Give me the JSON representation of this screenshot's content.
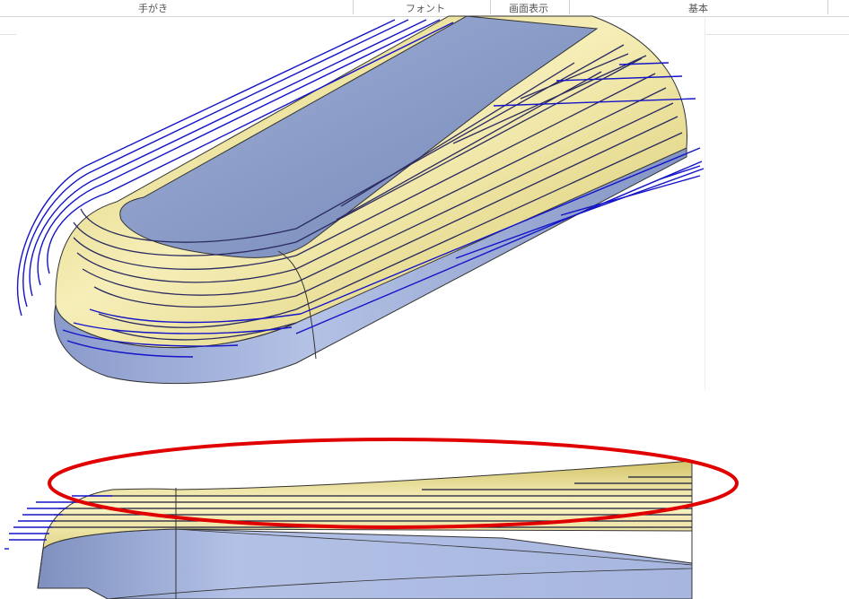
{
  "ribbon": {
    "groups": [
      {
        "label": "手がき"
      },
      {
        "label": "フォント"
      },
      {
        "label": "画面表示"
      },
      {
        "label": "基本"
      }
    ]
  },
  "colors": {
    "surface_blue": "#8d9ec7",
    "surface_yellow": "#efe6a2",
    "toolpath_blue": "#1414c8",
    "highlight_red": "#e00000"
  }
}
